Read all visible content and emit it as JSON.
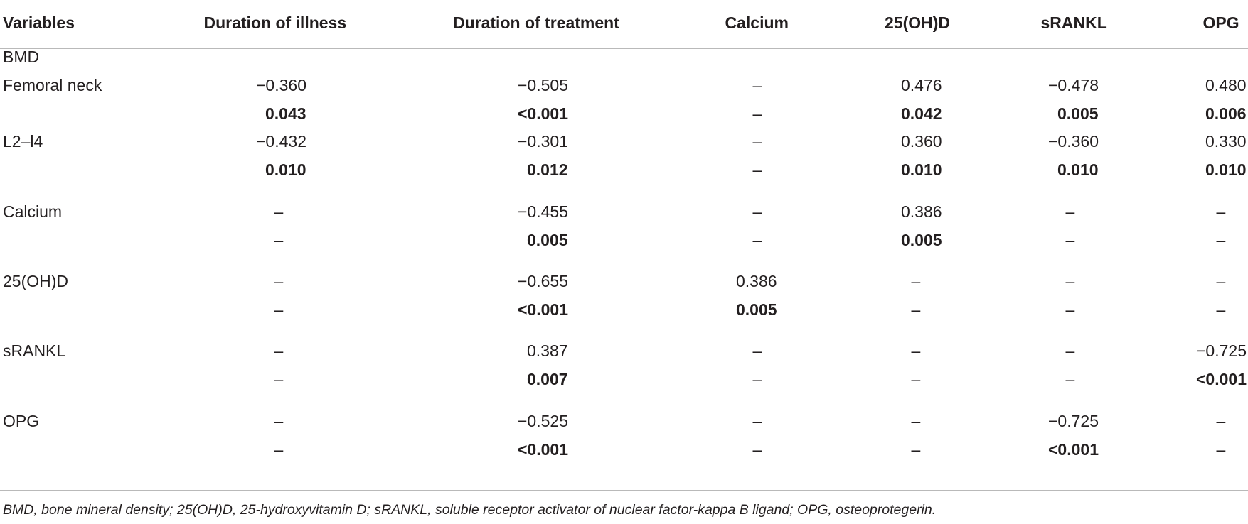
{
  "table": {
    "headers": [
      "Variables",
      "Duration of illness",
      "Duration of treatment",
      "Calcium",
      "25(OH)D",
      "sRANKL",
      "OPG"
    ],
    "sections": [
      {
        "label": "BMD",
        "rows": []
      },
      {
        "label": "Femoral neck",
        "rows": [
          [
            "−0.360",
            "−0.505",
            "–",
            "0.476",
            "−0.478",
            "0.480"
          ],
          [
            "0.043",
            "<0.001",
            "–",
            "0.042",
            "0.005",
            "0.006"
          ]
        ]
      },
      {
        "label": "L2–l4",
        "rows": [
          [
            "−0.432",
            "−0.301",
            "–",
            "0.360",
            "−0.360",
            "0.330"
          ],
          [
            "0.010",
            "0.012",
            "–",
            "0.010",
            "0.010",
            "0.010"
          ]
        ]
      },
      {
        "label": "Calcium",
        "rows": [
          [
            "–",
            "−0.455",
            "–",
            "0.386",
            "–",
            "–"
          ],
          [
            "–",
            "0.005",
            "–",
            "0.005",
            "–",
            "–"
          ]
        ]
      },
      {
        "label": "25(OH)D",
        "rows": [
          [
            "–",
            "−0.655",
            "0.386",
            "–",
            "–",
            "–"
          ],
          [
            "–",
            "<0.001",
            "0.005",
            "–",
            "–",
            "–"
          ]
        ]
      },
      {
        "label": "sRANKL",
        "rows": [
          [
            "–",
            "0.387",
            "–",
            "–",
            "–",
            "−0.725"
          ],
          [
            "–",
            "0.007",
            "–",
            "–",
            "–",
            "<0.001"
          ]
        ]
      },
      {
        "label": "OPG",
        "rows": [
          [
            "–",
            "−0.525",
            "–",
            "–",
            "−0.725",
            "–"
          ],
          [
            "–",
            "<0.001",
            "–",
            "–",
            "<0.001",
            "–"
          ]
        ]
      }
    ]
  },
  "footnote": "BMD, bone mineral density; 25(OH)D, 25-hydroxyvitamin D; sRANKL, soluble receptor activator of nuclear factor-kappa B ligand; OPG, osteoprotegerin."
}
